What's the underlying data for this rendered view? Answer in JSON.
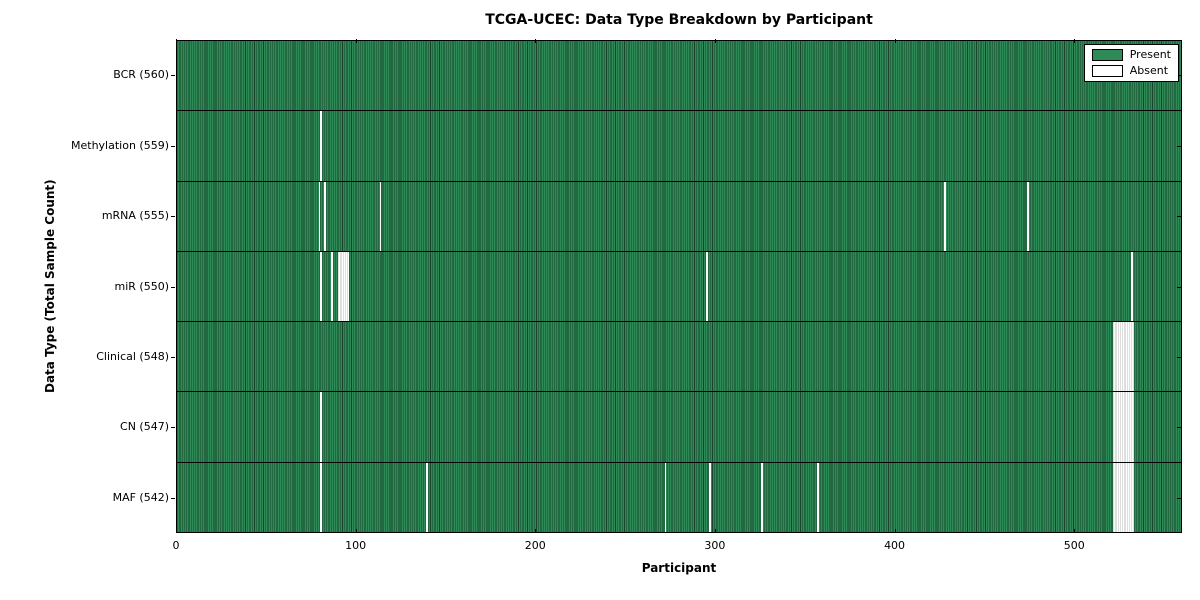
{
  "chart_data": {
    "type": "heatmap",
    "title": "TCGA-UCEC: Data Type Breakdown by Participant",
    "xlabel": "Participant",
    "ylabel": "Data Type (Total Sample Count)",
    "x_range": [
      0,
      560
    ],
    "x_ticks": [
      0,
      100,
      200,
      300,
      400,
      500
    ],
    "grid": false,
    "legend": {
      "position": "upper right",
      "entries": [
        {
          "label": "Present",
          "color": "#2E8B57"
        },
        {
          "label": "Absent",
          "color": "#FFFFFF"
        }
      ]
    },
    "colors": {
      "present": "#2E8B57",
      "absent": "#FFFFFF",
      "bar_edge": "#000000"
    },
    "rows": [
      {
        "data_type": "BCR",
        "label": "BCR (560)",
        "total_samples": 560,
        "absent_participants": []
      },
      {
        "data_type": "Methylation",
        "label": "Methylation (559)",
        "total_samples": 559,
        "absent_participants": [
          80
        ]
      },
      {
        "data_type": "mRNA",
        "label": "mRNA (555)",
        "total_samples": 555,
        "absent_participants": [
          79,
          82,
          113,
          428,
          474
        ]
      },
      {
        "data_type": "miR",
        "label": "miR (550)",
        "total_samples": 550,
        "absent_participants": [
          80,
          86,
          90,
          91,
          92,
          93,
          94,
          95,
          295,
          532
        ]
      },
      {
        "data_type": "Clinical",
        "label": "Clinical (548)",
        "total_samples": 548,
        "absent_participants": [
          522,
          523,
          524,
          525,
          526,
          527,
          528,
          529,
          530,
          531,
          532,
          533
        ]
      },
      {
        "data_type": "CN",
        "label": "CN (547)",
        "total_samples": 547,
        "absent_participants": [
          80,
          522,
          523,
          524,
          525,
          526,
          527,
          528,
          529,
          530,
          531,
          532,
          533
        ]
      },
      {
        "data_type": "MAF",
        "label": "MAF (542)",
        "total_samples": 542,
        "absent_participants": [
          80,
          139,
          272,
          297,
          326,
          357,
          522,
          523,
          524,
          525,
          526,
          527,
          528,
          529,
          530,
          531,
          532,
          533
        ]
      }
    ]
  }
}
